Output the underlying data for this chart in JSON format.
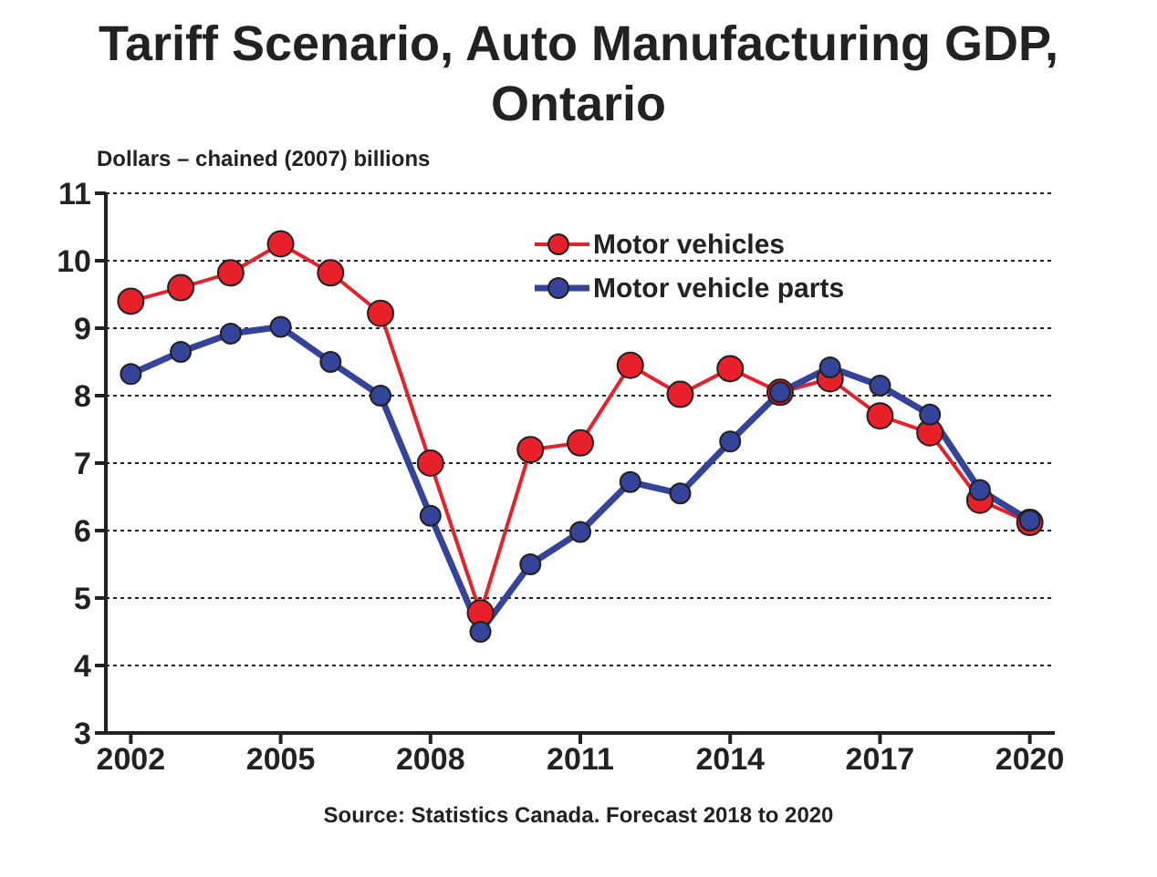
{
  "chart_data": {
    "type": "line",
    "title": "Tariff Scenario, Auto Manufacturing GDP, Ontario",
    "ylabel": "Dollars – chained (2007) billions",
    "x": [
      2002,
      2003,
      2004,
      2005,
      2006,
      2007,
      2008,
      2009,
      2010,
      2011,
      2012,
      2013,
      2014,
      2015,
      2016,
      2017,
      2018,
      2019,
      2020
    ],
    "series": [
      {
        "name": "Motor vehicles",
        "color": "#e8202a",
        "values": [
          9.4,
          9.6,
          9.82,
          10.25,
          9.82,
          9.22,
          7.0,
          4.78,
          7.2,
          7.3,
          8.45,
          8.02,
          8.4,
          8.05,
          8.25,
          7.7,
          7.45,
          6.45,
          6.12
        ]
      },
      {
        "name": "Motor vehicle parts",
        "color": "#34449a",
        "values": [
          8.32,
          8.65,
          8.92,
          9.02,
          8.5,
          8.0,
          6.22,
          4.5,
          5.5,
          5.98,
          6.72,
          6.55,
          7.32,
          8.05,
          8.42,
          8.15,
          7.72,
          6.6,
          6.15
        ]
      }
    ],
    "xlim": [
      2001.5,
      2020.5
    ],
    "xticks": [
      2002,
      2005,
      2008,
      2011,
      2014,
      2017,
      2020
    ],
    "ylim": [
      3,
      11
    ],
    "yticks": [
      3,
      4,
      5,
      6,
      7,
      8,
      9,
      10,
      11
    ],
    "grid": "y",
    "legend": "top right",
    "marker": "circle",
    "line_style": "solid",
    "annotations": [
      "Source:  Statistics Canada.   Forecast 2018 to 2020"
    ]
  }
}
